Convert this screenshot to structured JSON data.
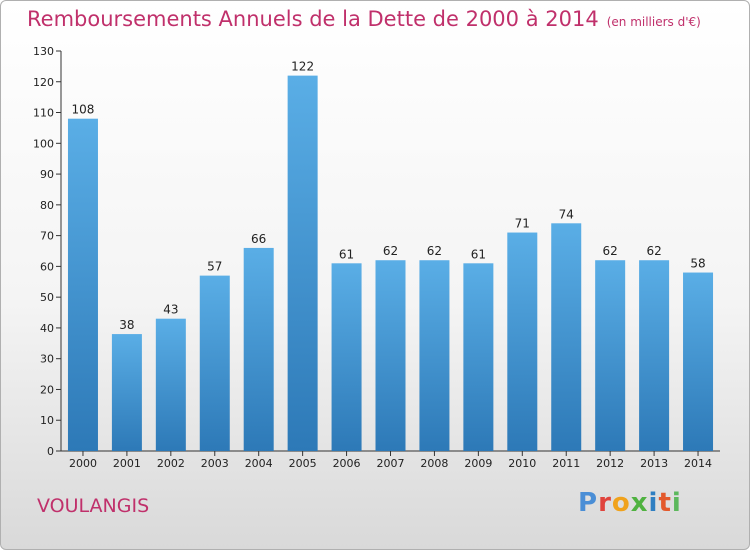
{
  "header": {
    "title": "Remboursements Annuels de la Dette de 2000 à 2014",
    "unit": "(en milliers d'€)"
  },
  "footer": {
    "commune": "VOULANGIS",
    "logo": "Proxiti"
  },
  "colors": {
    "accent": "#c0306b",
    "bar_top": "#5aaee6",
    "bar_bottom": "#2d79b7",
    "logo": [
      "#4a8ed6",
      "#e0433c",
      "#f0a21c",
      "#4fb240",
      "#2f7fc2",
      "#e3592c",
      "#5cb85c"
    ]
  },
  "chart_data": {
    "type": "bar",
    "title": "Remboursements Annuels de la Dette de 2000 à 2014",
    "unit": "(en milliers d'€)",
    "categories": [
      "2000",
      "2001",
      "2002",
      "2003",
      "2004",
      "2005",
      "2006",
      "2007",
      "2008",
      "2009",
      "2010",
      "2011",
      "2012",
      "2013",
      "2014"
    ],
    "values": [
      108,
      38,
      43,
      57,
      66,
      122,
      61,
      62,
      62,
      61,
      71,
      74,
      62,
      62,
      58
    ],
    "ylim": [
      0,
      130
    ],
    "yticks": [
      0,
      10,
      20,
      30,
      40,
      50,
      60,
      70,
      80,
      90,
      100,
      110,
      120,
      130
    ],
    "grid": false,
    "legend": "none"
  }
}
